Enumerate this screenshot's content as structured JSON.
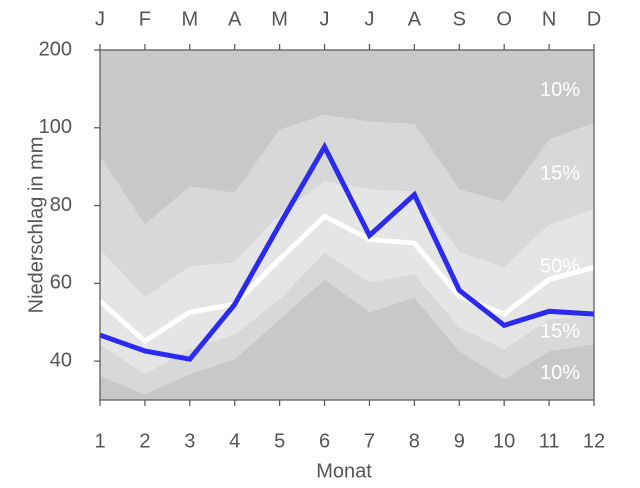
{
  "chart_data": {
    "type": "percentile_bands",
    "y_label": "Niederschlag in mm",
    "x_label": "Monat",
    "x": [
      1,
      2,
      3,
      4,
      5,
      6,
      7,
      8,
      9,
      10,
      11,
      12
    ],
    "xlim": [
      1,
      12
    ],
    "xticks": [
      1,
      2,
      3,
      4,
      5,
      6,
      7,
      8,
      9,
      10,
      11,
      12
    ],
    "top_categories": [
      "J",
      "F",
      "M",
      "A",
      "M",
      "J",
      "J",
      "A",
      "S",
      "O",
      "N",
      "D"
    ],
    "ylim": [
      30,
      200
    ],
    "yticks": [
      40,
      60,
      80,
      100,
      200
    ],
    "boundaries": [
      [
        36.2,
        31.5,
        36.7,
        40.5,
        50.8,
        61.0,
        52.6,
        56.4,
        42.6,
        35.4,
        42.6,
        44.4
      ],
      [
        44.4,
        36.7,
        43.1,
        46.9,
        55.9,
        67.9,
        60.3,
        62.3,
        48.7,
        43.1,
        50.8,
        51.8
      ],
      [
        68.7,
        56.4,
        64.4,
        65.4,
        77.7,
        86.2,
        84.1,
        83.6,
        68.0,
        64.1,
        75.1,
        79.0
      ],
      [
        92.6,
        75.1,
        84.9,
        83.3,
        99.5,
        116.7,
        107.7,
        105.1,
        84.1,
        81.0,
        96.9,
        106.4
      ]
    ],
    "bands": [
      {
        "label": "10%",
        "color": "#c8c8c8"
      },
      {
        "label": "15%",
        "color": "#d8d8d8"
      },
      {
        "label": "50%",
        "color": "#e5e5e5"
      },
      {
        "label": "15%",
        "color": "#d8d8d8"
      },
      {
        "label": "10%",
        "color": "#c8c8c8"
      }
    ],
    "series": [
      {
        "color": "#ffffff",
        "values": [
          55.4,
          45.1,
          52.6,
          54.6,
          66.2,
          77.2,
          71.3,
          70.3,
          56.7,
          52.1,
          61.0,
          64.1
        ]
      },
      {
        "color": "#2b2bf0",
        "values": [
          46.7,
          42.6,
          40.5,
          54.6,
          75.1,
          95.1,
          72.3,
          82.8,
          58.2,
          49.2,
          52.8,
          52.1
        ]
      }
    ]
  }
}
